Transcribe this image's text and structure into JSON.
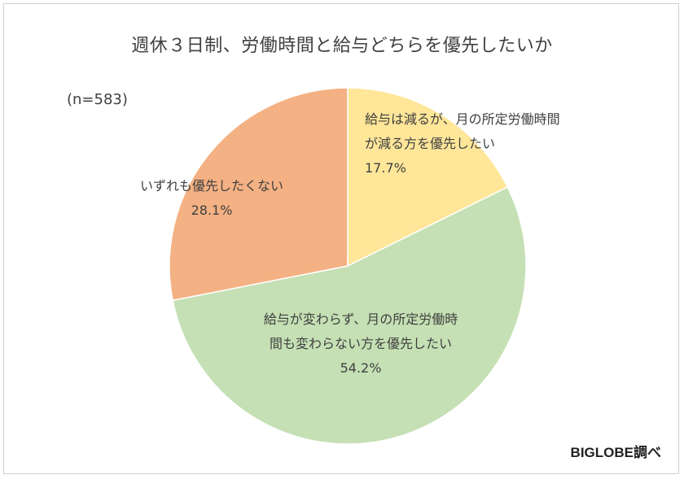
{
  "chart_data": {
    "type": "pie",
    "title": "週休３日制、労働時間と給与どちらを優先したいか",
    "sample_size": "(n=583)",
    "categories": [
      "給与は減るが、月の所定労働時間が減る方を優先したい",
      "給与が変わらず、月の所定労働時間も変わらない方を優先したい",
      "いずれも優先したくない"
    ],
    "values": [
      17.7,
      54.2,
      28.1
    ],
    "value_labels": [
      "17.7%",
      "54.2%",
      "28.1%"
    ],
    "colors": [
      "#FFE699",
      "#C5E0B4",
      "#F4B183"
    ],
    "start_angle_deg": 0,
    "direction": "clockwise",
    "legend": "none"
  },
  "slice_labels": [
    {
      "line1": "給与は減るが、月の所定労働時間",
      "line2": "が減る方を優先したい",
      "pct": "17.7%"
    },
    {
      "line1": "給与が変わらず、月の所定労働時",
      "line2": "間も変わらない方を優先したい",
      "pct": "54.2%"
    },
    {
      "line1": "いずれも優先したくない",
      "line2": "",
      "pct": "28.1%"
    }
  ],
  "credit": "BIGLOBE調べ"
}
